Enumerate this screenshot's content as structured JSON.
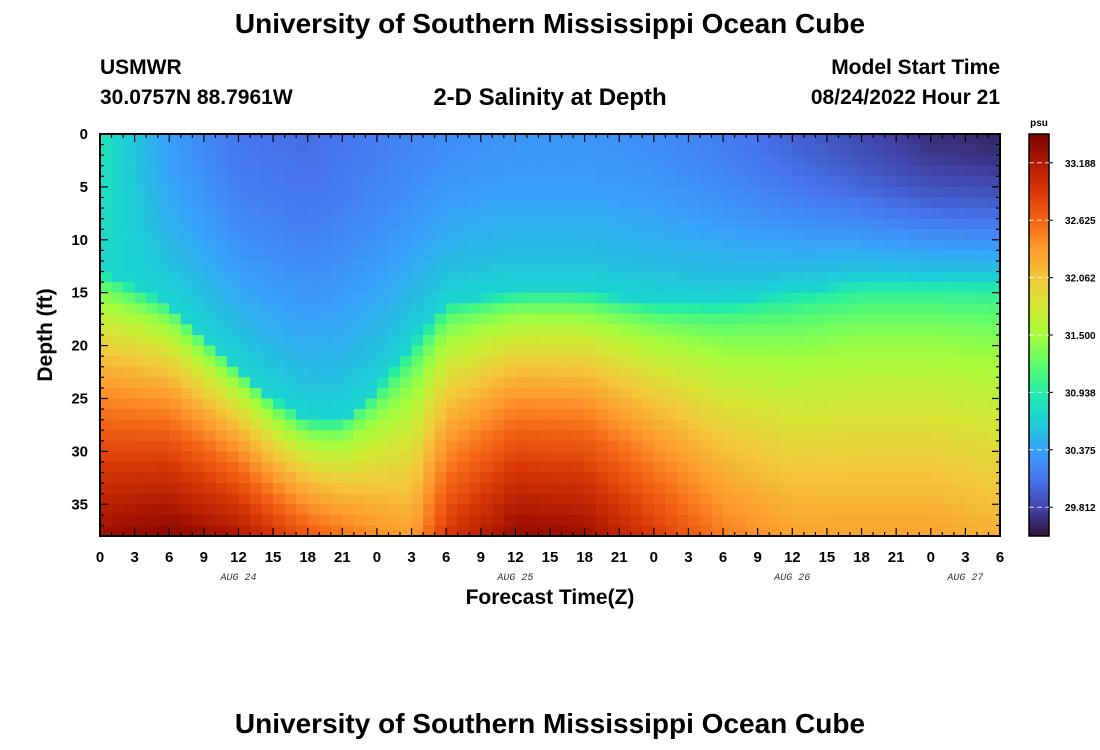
{
  "header": {
    "title": "University of Southern Mississippi Ocean Cube",
    "station": "USMWR",
    "coords": "30.0757N  88.7961W",
    "subtitle": "2-D Salinity at Depth",
    "start_label": "Model Start Time",
    "start_value": "08/24/2022 Hour 21"
  },
  "footer": {
    "title": "University of Southern Mississippi Ocean Cube"
  },
  "chart_data": {
    "type": "heatmap",
    "title": "2-D Salinity at Depth",
    "xlabel": "Forecast Time(Z)",
    "ylabel": "Depth (ft)",
    "x_tick_labels": [
      "0",
      "3",
      "6",
      "9",
      "12",
      "15",
      "18",
      "21",
      "0",
      "3",
      "6",
      "9",
      "12",
      "15",
      "18",
      "21",
      "0",
      "3",
      "6",
      "9",
      "12",
      "15",
      "18",
      "21",
      "0",
      "3",
      "6"
    ],
    "x_range_hours": [
      0,
      78
    ],
    "day_labels": [
      {
        "label": "AUG 24",
        "hour": 12
      },
      {
        "label": "AUG 25",
        "hour": 36
      },
      {
        "label": "AUG 26",
        "hour": 60
      },
      {
        "label": "AUG 27",
        "hour": 75
      }
    ],
    "y_tick_labels": [
      "0",
      "5",
      "10",
      "15",
      "20",
      "25",
      "30",
      "35"
    ],
    "y_range_ft": [
      0,
      38
    ],
    "y_inverted": true,
    "colorbar": {
      "unit": "psu",
      "min": 29.53,
      "max": 33.47,
      "tick_labels": [
        "33.188",
        "32.625",
        "32.062",
        "31.500",
        "30.938",
        "30.375",
        "29.812"
      ],
      "colormap": [
        "#30123b",
        "#4145ab",
        "#4675ed",
        "#39a2fc",
        "#1bcfd4",
        "#24eca6",
        "#61fc6c",
        "#a4fc3b",
        "#d1e834",
        "#f3c63a",
        "#fe9b2d",
        "#f36315",
        "#d93806",
        "#b11901",
        "#7a0403"
      ]
    },
    "iso_depth_of_30_7_psu_by_hour": [
      {
        "hour": 0,
        "depth_ft": 13
      },
      {
        "hour": 6,
        "depth_ft": 16
      },
      {
        "hour": 12,
        "depth_ft": 22
      },
      {
        "hour": 15,
        "depth_ft": 25
      },
      {
        "hour": 18,
        "depth_ft": 27
      },
      {
        "hour": 21,
        "depth_ft": 27
      },
      {
        "hour": 24,
        "depth_ft": 24
      },
      {
        "hour": 27,
        "depth_ft": 20
      },
      {
        "hour": 30,
        "depth_ft": 16
      },
      {
        "hour": 36,
        "depth_ft": 15
      },
      {
        "hour": 42,
        "depth_ft": 15
      },
      {
        "hour": 48,
        "depth_ft": 16
      },
      {
        "hour": 54,
        "depth_ft": 16
      },
      {
        "hour": 60,
        "depth_ft": 15
      },
      {
        "hour": 66,
        "depth_ft": 14
      },
      {
        "hour": 72,
        "depth_ft": 14
      },
      {
        "hour": 78,
        "depth_ft": 14
      }
    ],
    "surface_salinity_by_hour": [
      {
        "hour": 0,
        "psu": 30.85
      },
      {
        "hour": 6,
        "psu": 30.35
      },
      {
        "hour": 12,
        "psu": 30.1
      },
      {
        "hour": 18,
        "psu": 30.05
      },
      {
        "hour": 24,
        "psu": 30.15
      },
      {
        "hour": 30,
        "psu": 30.25
      },
      {
        "hour": 36,
        "psu": 30.3
      },
      {
        "hour": 42,
        "psu": 30.3
      },
      {
        "hour": 48,
        "psu": 30.25
      },
      {
        "hour": 54,
        "psu": 30.15
      },
      {
        "hour": 60,
        "psu": 30.0
      },
      {
        "hour": 66,
        "psu": 29.85
      },
      {
        "hour": 72,
        "psu": 29.7
      },
      {
        "hour": 78,
        "psu": 29.65
      }
    ],
    "bottom_salinity_by_hour": [
      {
        "hour": 0,
        "psu": 33.3
      },
      {
        "hour": 6,
        "psu": 33.4
      },
      {
        "hour": 12,
        "psu": 33.2
      },
      {
        "hour": 18,
        "psu": 32.7
      },
      {
        "hour": 24,
        "psu": 32.4
      },
      {
        "hour": 27,
        "psu": 32.3
      },
      {
        "hour": 30,
        "psu": 32.9
      },
      {
        "hour": 36,
        "psu": 33.35
      },
      {
        "hour": 42,
        "psu": 33.3
      },
      {
        "hour": 48,
        "psu": 32.9
      },
      {
        "hour": 54,
        "psu": 32.5
      },
      {
        "hour": 60,
        "psu": 32.3
      },
      {
        "hour": 66,
        "psu": 32.3
      },
      {
        "hour": 72,
        "psu": 32.3
      },
      {
        "hour": 78,
        "psu": 32.2
      }
    ]
  }
}
